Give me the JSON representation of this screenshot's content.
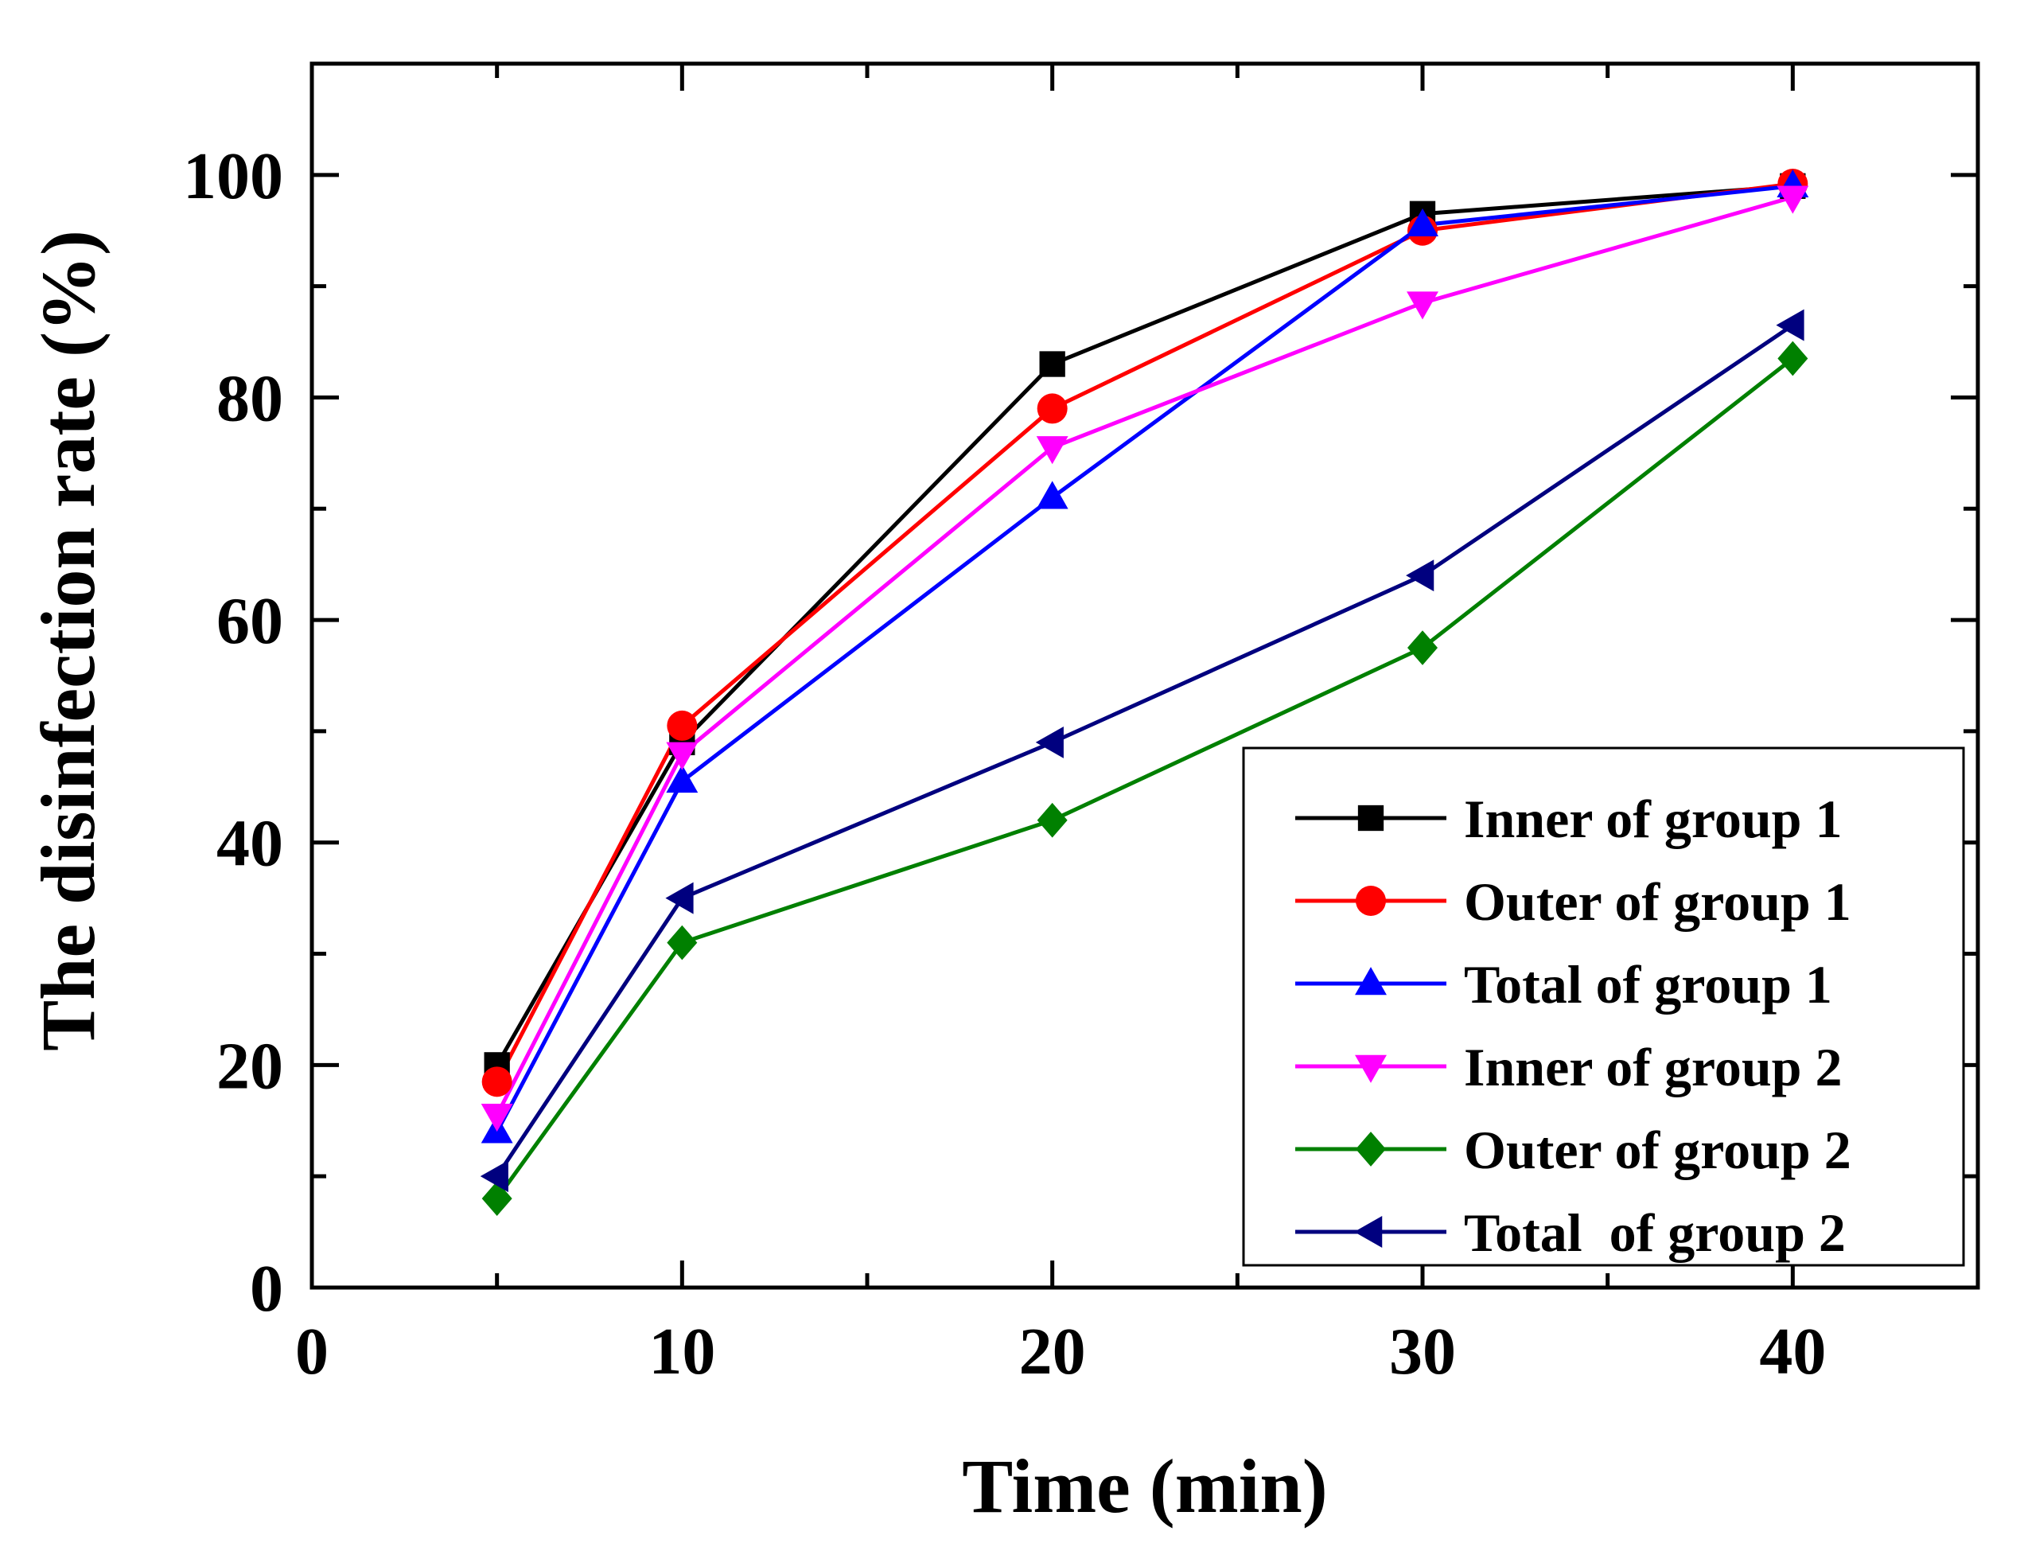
{
  "chart_data": {
    "type": "line",
    "title": "",
    "xlabel": "Time (min)",
    "ylabel": "The disinfection rate (%)",
    "xlim": [
      0,
      45
    ],
    "ylim": [
      0,
      110
    ],
    "xticks": [
      0,
      10,
      20,
      30,
      40
    ],
    "yticks": [
      0,
      20,
      40,
      60,
      80,
      100
    ],
    "x_minor_ticks": [
      5,
      15,
      25,
      35,
      45
    ],
    "y_minor_ticks": [
      10,
      30,
      50,
      70,
      90
    ],
    "grid": false,
    "legend_position": "bottom-right",
    "x": [
      5,
      10,
      20,
      30,
      40
    ],
    "series": [
      {
        "name": "Inner of group 1",
        "color": "#000000",
        "marker": "square",
        "values": [
          20.0,
          49.0,
          83.0,
          96.5,
          99.0
        ]
      },
      {
        "name": "Outer of group 1",
        "color": "#ff0000",
        "marker": "circle",
        "values": [
          18.5,
          50.5,
          79.0,
          95.0,
          99.2
        ]
      },
      {
        "name": "Total of group 1",
        "color": "#0000ff",
        "marker": "triangle-up",
        "values": [
          14.0,
          45.5,
          71.0,
          95.5,
          99.0
        ]
      },
      {
        "name": "Inner of group 2",
        "color": "#ff00ff",
        "marker": "triangle-down",
        "values": [
          15.5,
          48.0,
          75.5,
          88.5,
          98.0
        ]
      },
      {
        "name": "Outer of group 2",
        "color": "#008000",
        "marker": "diamond",
        "values": [
          8.0,
          31.0,
          42.0,
          57.5,
          83.5
        ]
      },
      {
        "name": "Total  of group 2",
        "color": "#00007f",
        "marker": "triangle-left",
        "values": [
          10.0,
          35.0,
          49.0,
          64.0,
          86.5
        ]
      }
    ]
  }
}
